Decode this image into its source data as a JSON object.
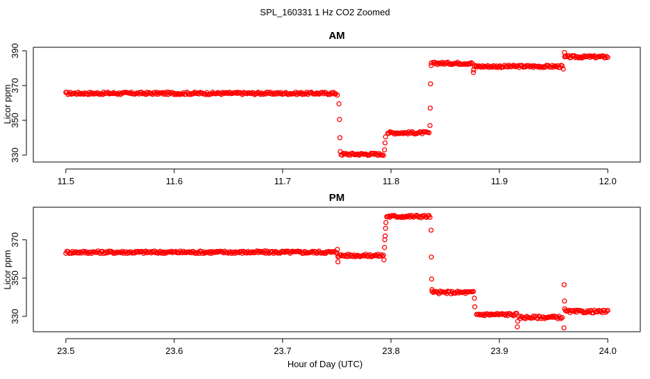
{
  "figure_title": "SPL_160331  1 Hz CO2 Zoomed",
  "shared_xlabel": "Hour of Day (UTC)",
  "marker_color": "#ff0000",
  "chart_data": [
    {
      "type": "scatter",
      "title": "AM",
      "xlabel": "Hour of Day (UTC)",
      "ylabel": "Licor ppm",
      "xlim": [
        11.47,
        12.03
      ],
      "ylim": [
        326,
        392
      ],
      "xticks": [
        11.5,
        11.6,
        11.7,
        11.8,
        11.9,
        12.0
      ],
      "xtick_labels": [
        "11.5",
        "11.6",
        "11.7",
        "11.8",
        "11.9",
        "12.0"
      ],
      "yticks": [
        330,
        350,
        370,
        390
      ],
      "ytick_labels": [
        "330",
        "350",
        "370",
        "390"
      ],
      "series": [
        {
          "color": "#ff0000",
          "marker": "open-circle",
          "segments": [
            {
              "x_start": 11.5,
              "x_end": 11.749,
              "y": 365.5
            },
            {
              "x_start": 11.754,
              "x_end": 11.793,
              "y": 330.5
            },
            {
              "x_start": 11.797,
              "x_end": 11.835,
              "y": 342.8
            },
            {
              "x_start": 11.839,
              "x_end": 11.875,
              "y": 382.8
            },
            {
              "x_start": 11.877,
              "x_end": 11.958,
              "y": 381.0
            },
            {
              "x_start": 11.961,
              "x_end": 12.0,
              "y": 386.5
            }
          ],
          "transition_points": [
            {
              "x": 11.7505,
              "y": 364.5
            },
            {
              "x": 11.752,
              "y": 359.5
            },
            {
              "x": 11.7525,
              "y": 350.5
            },
            {
              "x": 11.7528,
              "y": 340.0
            },
            {
              "x": 11.7532,
              "y": 332.0
            },
            {
              "x": 11.794,
              "y": 333.0
            },
            {
              "x": 11.7945,
              "y": 337.0
            },
            {
              "x": 11.795,
              "y": 340.5
            },
            {
              "x": 11.836,
              "y": 347.0
            },
            {
              "x": 11.8362,
              "y": 357.0
            },
            {
              "x": 11.8365,
              "y": 371.0
            },
            {
              "x": 11.837,
              "y": 381.5
            },
            {
              "x": 11.8372,
              "y": 383.0
            },
            {
              "x": 11.876,
              "y": 377.5
            },
            {
              "x": 11.8762,
              "y": 379.0
            },
            {
              "x": 11.959,
              "y": 379.5
            },
            {
              "x": 11.96,
              "y": 389.0
            },
            {
              "x": 11.9602,
              "y": 386.5
            }
          ]
        }
      ]
    },
    {
      "type": "scatter",
      "title": "PM",
      "xlabel": "Hour of Day (UTC)",
      "ylabel": "Licor ppm",
      "xlim": [
        23.47,
        24.03
      ],
      "ylim": [
        322,
        387
      ],
      "xticks": [
        23.5,
        23.6,
        23.7,
        23.8,
        23.9,
        24.0
      ],
      "xtick_labels": [
        "23.5",
        "23.6",
        "23.7",
        "23.8",
        "23.9",
        "24.0"
      ],
      "yticks": [
        330,
        350,
        370
      ],
      "ytick_labels": [
        "330",
        "350",
        "370"
      ],
      "series": [
        {
          "color": "#ff0000",
          "marker": "open-circle",
          "segments": [
            {
              "x_start": 23.5,
              "x_end": 23.75,
              "y": 363.5
            },
            {
              "x_start": 23.751,
              "x_end": 23.793,
              "y": 361.8
            },
            {
              "x_start": 23.796,
              "x_end": 23.836,
              "y": 382.2
            },
            {
              "x_start": 23.838,
              "x_end": 23.876,
              "y": 342.5
            },
            {
              "x_start": 23.879,
              "x_end": 23.916,
              "y": 331.0
            },
            {
              "x_start": 23.918,
              "x_end": 23.958,
              "y": 329.5
            },
            {
              "x_start": 23.961,
              "x_end": 24.0,
              "y": 332.5
            }
          ],
          "transition_points": [
            {
              "x": 23.7505,
              "y": 365.0
            },
            {
              "x": 23.751,
              "y": 358.5
            },
            {
              "x": 23.7935,
              "y": 359.5
            },
            {
              "x": 23.794,
              "y": 366.0
            },
            {
              "x": 23.7943,
              "y": 370.0
            },
            {
              "x": 23.7946,
              "y": 372.0
            },
            {
              "x": 23.795,
              "y": 376.0
            },
            {
              "x": 23.7953,
              "y": 379.0
            },
            {
              "x": 23.837,
              "y": 375.0
            },
            {
              "x": 23.8372,
              "y": 361.0
            },
            {
              "x": 23.8375,
              "y": 349.5
            },
            {
              "x": 23.8378,
              "y": 344.0
            },
            {
              "x": 23.877,
              "y": 339.5
            },
            {
              "x": 23.8773,
              "y": 335.0
            },
            {
              "x": 23.9165,
              "y": 324.5
            },
            {
              "x": 23.917,
              "y": 327.5
            },
            {
              "x": 23.9595,
              "y": 324.0
            },
            {
              "x": 23.9598,
              "y": 346.5
            },
            {
              "x": 23.96,
              "y": 338.0
            },
            {
              "x": 23.9603,
              "y": 334.0
            }
          ]
        }
      ]
    }
  ]
}
